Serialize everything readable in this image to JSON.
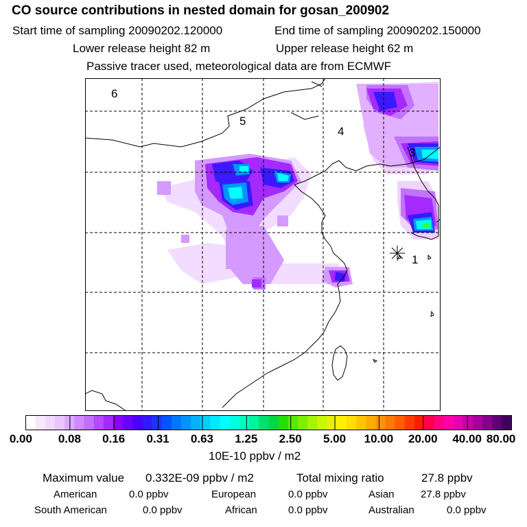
{
  "header": {
    "title": "CO  source contributions in nested domain for gosan_200902",
    "start_time": "Start time of sampling 20090202.120000",
    "end_time": "End time of sampling 20090202.150000",
    "lower_release": "Lower release height   82 m",
    "upper_release": "Upper release height   62 m",
    "tracer_note": "Passive tracer used, meteorological data are from ECMWF"
  },
  "map": {
    "grid_labels": [
      "6",
      "5",
      "4",
      "3",
      "1"
    ],
    "colors": {
      "white": "#ffffff",
      "light_purple": "#e8c3ff",
      "purple": "#cc66ff",
      "violet": "#aa00ff",
      "blue": "#3a19ff",
      "sky": "#009cff",
      "cyan": "#00ffff",
      "aqua": "#00e0c0",
      "green": "#3cff3c"
    }
  },
  "colorbar": {
    "ticks": [
      "0.00",
      "0.08",
      "0.16",
      "0.31",
      "0.63",
      "1.25",
      "2.50",
      "5.00",
      "10.00",
      "20.00",
      "40.00",
      "80.00"
    ],
    "unit": "10E-10 ppbv / m2",
    "colors": [
      "#ffffff",
      "#f7e8ff",
      "#f0d8ff",
      "#e9c5ff",
      "#dca9ff",
      "#cf8aff",
      "#c46dff",
      "#b54bff",
      "#a42aff",
      "#8c00ff",
      "#6a00ff",
      "#4a00ff",
      "#3018ff",
      "#1b35ff",
      "#0055ff",
      "#0077ff",
      "#0094ff",
      "#00b3ff",
      "#00d0ff",
      "#00eaff",
      "#00ffff",
      "#00ffe0",
      "#00ffbf",
      "#00f59a",
      "#00e070",
      "#00d845",
      "#24e000",
      "#55eb00",
      "#7cf000",
      "#a6f500",
      "#c8f700",
      "#e6f200",
      "#fff200",
      "#ffdf00",
      "#ffc700",
      "#ffae00",
      "#ff9400",
      "#ff7a00",
      "#ff5d00",
      "#ff3c00",
      "#ff1e00",
      "#ff004a",
      "#ff0080",
      "#ff00a6",
      "#e600b0",
      "#c800a8",
      "#a6009b",
      "#84008a",
      "#620075",
      "#42005c"
    ]
  },
  "summary": {
    "max_label": "Maximum value",
    "max_value": "0.332E-09 ppbv / m2",
    "total_label": "Total mixing ratio",
    "total_value": "27.8 ppbv",
    "regions": [
      {
        "name": "American",
        "value": "0.0 ppbv"
      },
      {
        "name": "European",
        "value": "0.0 ppbv"
      },
      {
        "name": "Asian",
        "value": "27.8 ppbv"
      },
      {
        "name": "South American",
        "value": "0.0 ppbv"
      },
      {
        "name": "African",
        "value": "0.0 ppbv"
      },
      {
        "name": "Australian",
        "value": "0.0 ppbv"
      }
    ]
  }
}
